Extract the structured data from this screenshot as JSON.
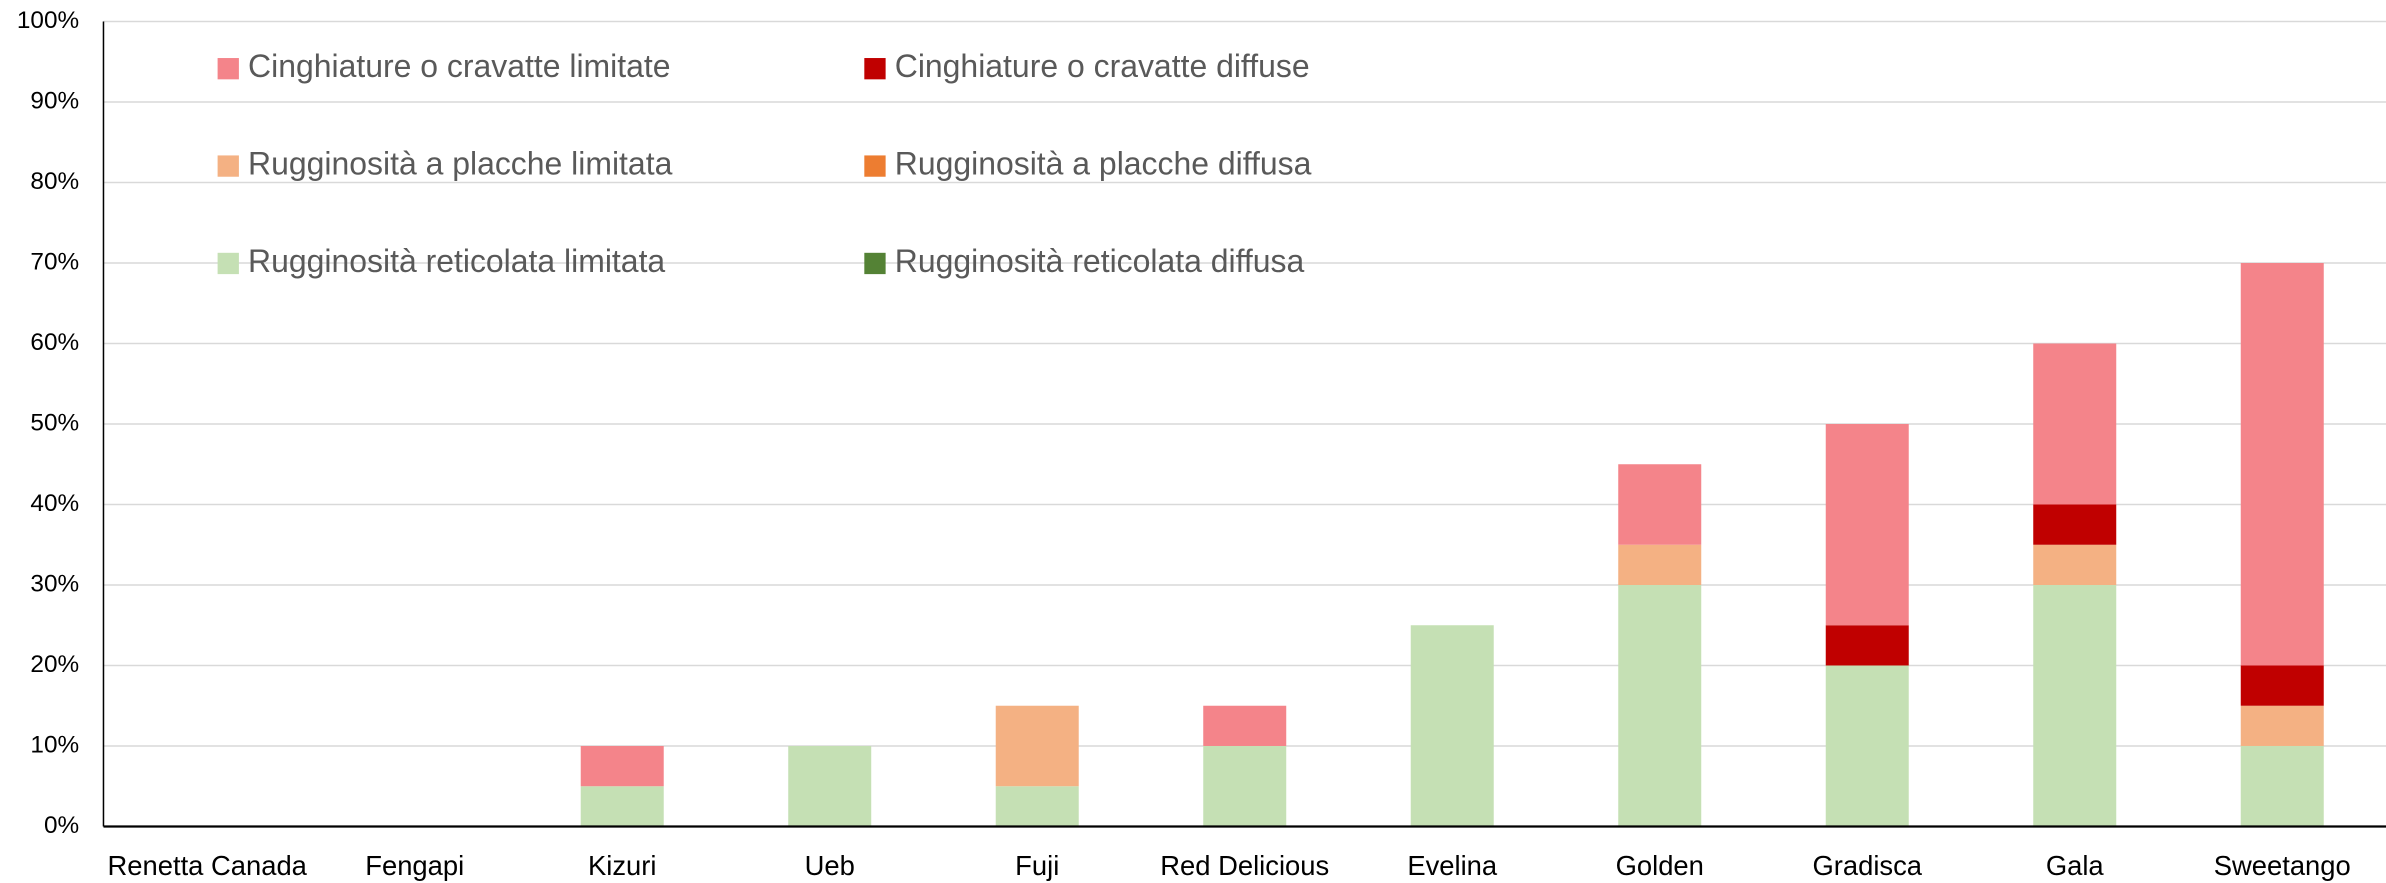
{
  "chart_data": {
    "type": "stacked_bar",
    "categories": [
      "Renetta Canada",
      "Fengapi",
      "Kizuri",
      "Ueb",
      "Fuji",
      "Red Delicious",
      "Evelina",
      "Golden",
      "Gradisca",
      "Gala",
      "Sweetango"
    ],
    "series": [
      {
        "name": "Rugginosità reticolata limitata",
        "color": "#C5E0B4",
        "values": [
          0,
          0,
          5,
          10,
          5,
          10,
          25,
          30,
          20,
          30,
          10
        ]
      },
      {
        "name": "Rugginosità reticolata diffusa",
        "color": "#548235",
        "values": [
          0,
          0,
          0,
          0,
          0,
          0,
          0,
          0,
          0,
          0,
          0
        ]
      },
      {
        "name": "Rugginosità a placche limitata",
        "color": "#F4B183",
        "values": [
          0,
          0,
          0,
          0,
          10,
          0,
          0,
          5,
          0,
          5,
          5
        ]
      },
      {
        "name": "Rugginosità a placche diffusa",
        "color": "#ED7D31",
        "values": [
          0,
          0,
          0,
          0,
          0,
          0,
          0,
          0,
          0,
          0,
          0
        ]
      },
      {
        "name": "Cinghiature o cravatte diffuse",
        "color": "#C00000",
        "values": [
          0,
          0,
          0,
          0,
          0,
          0,
          0,
          0,
          5,
          5,
          5
        ]
      },
      {
        "name": "Cinghiature o cravatte limitate",
        "color": "#F4848A",
        "values": [
          0,
          0,
          5,
          0,
          0,
          5,
          0,
          10,
          25,
          20,
          50
        ]
      }
    ],
    "ylim": [
      0,
      100
    ],
    "yticks": [
      {
        "value": 0,
        "label": "0%"
      },
      {
        "value": 10,
        "label": "10%"
      },
      {
        "value": 20,
        "label": "20%"
      },
      {
        "value": 30,
        "label": "30%"
      },
      {
        "value": 40,
        "label": "40%"
      },
      {
        "value": 50,
        "label": "50%"
      },
      {
        "value": 60,
        "label": "60%"
      },
      {
        "value": 70,
        "label": "70%"
      },
      {
        "value": 80,
        "label": "80%"
      },
      {
        "value": 90,
        "label": "90%"
      },
      {
        "value": 100,
        "label": "100%"
      }
    ],
    "grid": true
  }
}
